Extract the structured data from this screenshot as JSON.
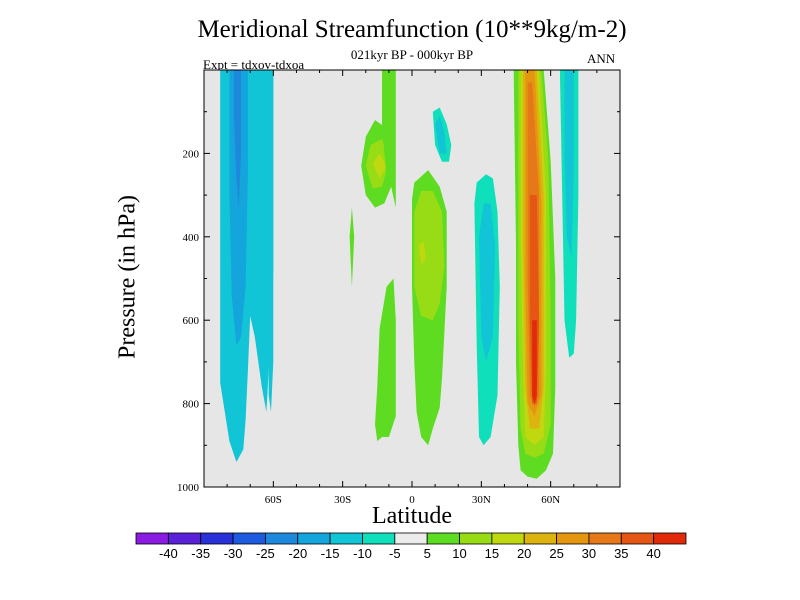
{
  "chart_data": {
    "type": "heatmap",
    "title": "Meridional Streamfunction (10**9kg/m-2)",
    "subtitle": "021kyr BP - 000kyr BP",
    "left_label": "Expt = tdxov-tdxoa",
    "right_label": "ANN",
    "xlabel": "Latitude",
    "ylabel": "Pressure (in hPa)",
    "x_ticks": [
      "60S",
      "30S",
      "0",
      "30N",
      "60N"
    ],
    "y_ticks": [
      "200",
      "400",
      "600",
      "800",
      "1000"
    ],
    "y_tick_values": [
      200,
      400,
      600,
      800,
      1000
    ],
    "x_range": [
      -90,
      90
    ],
    "y_range": [
      0,
      1000
    ],
    "background_color": "#e6e6e6",
    "colorbar": {
      "labels": [
        "-40",
        "-35",
        "-30",
        "-25",
        "-20",
        "-15",
        "-10",
        "-5",
        "5",
        "10",
        "15",
        "20",
        "25",
        "30",
        "35",
        "40"
      ],
      "colors": [
        "#8a1be0",
        "#5a22d8",
        "#2830d8",
        "#1e5ae0",
        "#1e88dd",
        "#14a5dc",
        "#12c5d6",
        "#10dfbb",
        "#ececec",
        "#5ddc22",
        "#97dc14",
        "#c0d80f",
        "#ddb310",
        "#e59610",
        "#e57818",
        "#e55614",
        "#e12a0a"
      ]
    },
    "features": [
      {
        "name": "southern-deep-cell",
        "level": "-10",
        "lat_range": [
          -83,
          -60
        ],
        "p_range": [
          0,
          950
        ]
      },
      {
        "name": "southern-core",
        "level": "-15",
        "lat_range": [
          -78,
          -72
        ],
        "p_range": [
          0,
          620
        ]
      },
      {
        "name": "tropical-south-cell",
        "level": "15",
        "lat_range": [
          -22,
          -8
        ],
        "p_range": [
          170,
          280
        ]
      },
      {
        "name": "equatorial-north-cell",
        "level": "10",
        "lat_range": [
          2,
          15
        ],
        "p_range": [
          270,
          600
        ]
      },
      {
        "name": "northern-descent-cell",
        "level": "-10",
        "lat_range": [
          8,
          17
        ],
        "p_range": [
          90,
          230
        ]
      },
      {
        "name": "subtropical-north-cell",
        "level": "-10",
        "lat_range": [
          28,
          38
        ],
        "p_range": [
          260,
          940
        ]
      },
      {
        "name": "northern-main-cell",
        "level": "35",
        "lat_range": [
          47,
          60
        ],
        "p_range": [
          0,
          1000
        ]
      },
      {
        "name": "northern-max",
        "level": "40",
        "lat_range": [
          52,
          56
        ],
        "p_range": [
          600,
          800
        ]
      },
      {
        "name": "high-latitude-cell",
        "level": "-10",
        "lat_range": [
          66,
          72
        ],
        "p_range": [
          0,
          700
        ]
      }
    ]
  }
}
